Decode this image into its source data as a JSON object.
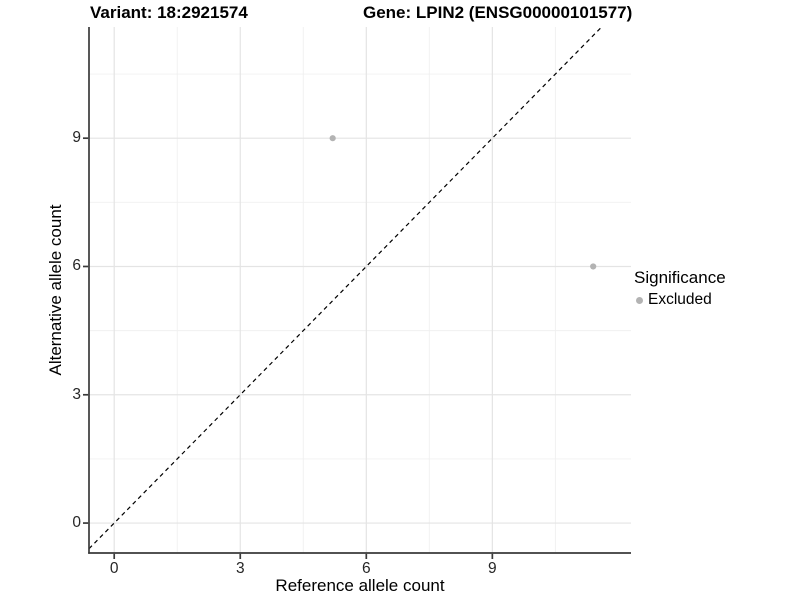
{
  "chart_data": {
    "type": "scatter",
    "title_left": "Variant: 18:2921574",
    "title_right": "Gene: LPIN2 (ENSG00000101577)",
    "xlabel": "Reference allele count",
    "ylabel": "Alternative allele count",
    "xlim": [
      -0.6,
      12.3
    ],
    "ylim": [
      -0.7,
      11.6
    ],
    "x_ticks": [
      0,
      3,
      6,
      9
    ],
    "x_tick_labels": [
      "0",
      "3",
      "6",
      "9"
    ],
    "y_ticks": [
      0,
      3,
      6,
      9
    ],
    "y_tick_labels": [
      "0",
      "3",
      "6",
      "9"
    ],
    "x_minor_gridlines": [
      1.5,
      4.5,
      7.5,
      10.5
    ],
    "y_minor_gridlines": [
      1.5,
      4.5,
      7.5,
      10.5
    ],
    "grid": {
      "major_color": "#e4e4e4",
      "minor_color": "#f0f0f0",
      "background": "#ffffff"
    },
    "series": [
      {
        "name": "Excluded",
        "color": "#b3b3b3",
        "points": [
          {
            "x": 5.2,
            "y": 9
          },
          {
            "x": 11.4,
            "y": 6
          }
        ]
      }
    ],
    "reference_line": {
      "type": "identity",
      "slope": 1,
      "intercept": 0,
      "style": "dashed",
      "color": "#000000"
    },
    "legend": {
      "position": "right",
      "title": "Significance",
      "items": [
        {
          "label": "Excluded",
          "color": "#b3b3b3"
        }
      ]
    },
    "axis_color": "#3a3a3a"
  }
}
